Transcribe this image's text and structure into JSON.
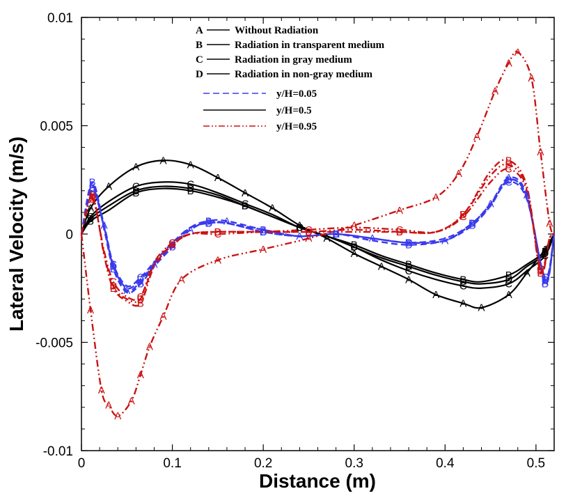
{
  "chart_data": {
    "type": "line",
    "title": "",
    "xlabel": "Distance (m)",
    "ylabel": "Lateral Velocity (m/s)",
    "xlim": [
      0,
      0.52
    ],
    "ylim": [
      -0.01,
      0.01
    ],
    "x_ticks": [
      0,
      0.1,
      0.2,
      0.3,
      0.4,
      0.5
    ],
    "x_tick_labels": [
      "0",
      "0.1",
      "0.2",
      "0.3",
      "0.4",
      "0.5"
    ],
    "y_ticks": [
      -0.01,
      -0.005,
      0,
      0.005,
      0.01
    ],
    "y_tick_labels": [
      "-0.01",
      "-0.005",
      "0",
      "0.005",
      "0.01"
    ],
    "grid": false,
    "legend_cases": [
      {
        "letter": "A",
        "label": "Without Radiation"
      },
      {
        "letter": "B",
        "label": "Radiation in transparent medium"
      },
      {
        "letter": "C",
        "label": "Radiation in gray medium"
      },
      {
        "letter": "D",
        "label": "Radiation in non-gray medium"
      }
    ],
    "legend_styles": [
      {
        "label": "y/H=0.05",
        "color": "#3a3aee",
        "dash": "dashed"
      },
      {
        "label": "y/H=0.5",
        "color": "#000000",
        "dash": "solid"
      },
      {
        "label": "y/H=0.95",
        "color": "#cc1111",
        "dash": "dashdotdot"
      }
    ],
    "series": [
      {
        "name": "A y/H=0.5",
        "case": "A",
        "style": "y/H=0.5",
        "x": [
          0,
          0.01,
          0.03,
          0.06,
          0.09,
          0.12,
          0.15,
          0.18,
          0.21,
          0.24,
          0.27,
          0.3,
          0.33,
          0.36,
          0.39,
          0.42,
          0.44,
          0.47,
          0.49,
          0.51,
          0.52
        ],
        "y": [
          0,
          0.0012,
          0.0022,
          0.0031,
          0.0034,
          0.0032,
          0.0026,
          0.0019,
          0.0012,
          0.0004,
          -0.0002,
          -0.0009,
          -0.0015,
          -0.0021,
          -0.0028,
          -0.0032,
          -0.0034,
          -0.0028,
          -0.0018,
          -0.0007,
          0
        ]
      },
      {
        "name": "B y/H=0.5",
        "case": "B",
        "style": "y/H=0.5",
        "x": [
          0,
          0.01,
          0.03,
          0.06,
          0.09,
          0.12,
          0.15,
          0.18,
          0.21,
          0.24,
          0.27,
          0.3,
          0.33,
          0.36,
          0.39,
          0.42,
          0.44,
          0.47,
          0.49,
          0.51,
          0.52
        ],
        "y": [
          0,
          0.0006,
          0.0011,
          0.0019,
          0.0021,
          0.002,
          0.0017,
          0.0013,
          0.0008,
          0.0003,
          -0.0001,
          -0.0005,
          -0.001,
          -0.0014,
          -0.0018,
          -0.0021,
          -0.0022,
          -0.0019,
          -0.0014,
          -0.0008,
          0
        ]
      },
      {
        "name": "C y/H=0.5",
        "case": "C",
        "style": "y/H=0.5",
        "x": [
          0,
          0.01,
          0.03,
          0.06,
          0.09,
          0.12,
          0.15,
          0.18,
          0.21,
          0.24,
          0.27,
          0.3,
          0.33,
          0.36,
          0.39,
          0.42,
          0.44,
          0.47,
          0.49,
          0.51,
          0.52
        ],
        "y": [
          0,
          0.0008,
          0.0015,
          0.0022,
          0.0024,
          0.0023,
          0.0019,
          0.0014,
          0.0009,
          0.0003,
          -0.0001,
          -0.0006,
          -0.0012,
          -0.0017,
          -0.0021,
          -0.0024,
          -0.0025,
          -0.0023,
          -0.0017,
          -0.001,
          0
        ]
      },
      {
        "name": "D y/H=0.5",
        "case": "D",
        "style": "y/H=0.5",
        "x": [
          0,
          0.01,
          0.03,
          0.06,
          0.09,
          0.12,
          0.15,
          0.18,
          0.21,
          0.24,
          0.27,
          0.3,
          0.33,
          0.36,
          0.39,
          0.42,
          0.44,
          0.47,
          0.49,
          0.51,
          0.52
        ],
        "y": [
          0,
          0.0007,
          0.0013,
          0.002,
          0.0022,
          0.0021,
          0.0018,
          0.0013,
          0.0008,
          0.0003,
          -0.0001,
          -0.0006,
          -0.0011,
          -0.0015,
          -0.0019,
          -0.0022,
          -0.0023,
          -0.0021,
          -0.0015,
          -0.0009,
          0
        ]
      },
      {
        "name": "A y/H=0.05",
        "case": "A",
        "style": "y/H=0.05",
        "x": [
          0,
          0.012,
          0.025,
          0.035,
          0.05,
          0.065,
          0.08,
          0.1,
          0.12,
          0.14,
          0.16,
          0.2,
          0.24,
          0.28,
          0.32,
          0.36,
          0.4,
          0.43,
          0.45,
          0.47,
          0.49,
          0.51,
          0.52
        ],
        "y": [
          0,
          0.0022,
          0.0004,
          -0.0014,
          -0.0026,
          -0.0022,
          -0.0014,
          -0.0005,
          0.0002,
          0.0006,
          0.0006,
          0.0002,
          -0.0001,
          0.0,
          -0.0002,
          -0.0004,
          -0.0003,
          0.0005,
          0.0014,
          0.0026,
          0.0018,
          -0.0022,
          0
        ]
      },
      {
        "name": "B y/H=0.05",
        "case": "B",
        "style": "y/H=0.05",
        "x": [
          0,
          0.012,
          0.025,
          0.035,
          0.05,
          0.065,
          0.08,
          0.1,
          0.12,
          0.14,
          0.16,
          0.2,
          0.24,
          0.28,
          0.32,
          0.36,
          0.4,
          0.43,
          0.45,
          0.47,
          0.49,
          0.51,
          0.52
        ],
        "y": [
          0,
          0.0024,
          0.0002,
          -0.0016,
          -0.0027,
          -0.0023,
          -0.0015,
          -0.0006,
          0.0003,
          0.0006,
          0.0005,
          0.0002,
          -0.0001,
          0.0,
          -0.0003,
          -0.0005,
          -0.0003,
          0.0004,
          0.0013,
          0.0025,
          0.0017,
          -0.0023,
          0
        ]
      },
      {
        "name": "C y/H=0.05",
        "case": "C",
        "style": "y/H=0.05",
        "x": [
          0,
          0.012,
          0.025,
          0.035,
          0.05,
          0.065,
          0.08,
          0.1,
          0.12,
          0.14,
          0.16,
          0.2,
          0.24,
          0.28,
          0.32,
          0.36,
          0.4,
          0.43,
          0.45,
          0.47,
          0.49,
          0.51,
          0.52
        ],
        "y": [
          0,
          0.002,
          0.0003,
          -0.0014,
          -0.0024,
          -0.002,
          -0.0013,
          -0.0004,
          0.0003,
          0.0005,
          0.0005,
          0.0001,
          -0.0001,
          0.0,
          -0.0002,
          -0.0004,
          -0.0002,
          0.0005,
          0.0014,
          0.0024,
          0.0016,
          -0.002,
          0
        ]
      },
      {
        "name": "D y/H=0.05",
        "case": "D",
        "style": "y/H=0.05",
        "x": [
          0,
          0.012,
          0.025,
          0.035,
          0.05,
          0.065,
          0.08,
          0.1,
          0.12,
          0.14,
          0.16,
          0.2,
          0.24,
          0.28,
          0.32,
          0.36,
          0.4,
          0.43,
          0.45,
          0.47,
          0.49,
          0.51,
          0.52
        ],
        "y": [
          0,
          0.0021,
          0.0003,
          -0.0015,
          -0.0025,
          -0.0021,
          -0.0014,
          -0.0005,
          0.0003,
          0.0005,
          0.0005,
          0.0001,
          -0.0001,
          0.0,
          -0.0002,
          -0.0004,
          -0.0003,
          0.0005,
          0.0013,
          0.0025,
          0.0017,
          -0.0021,
          0
        ]
      },
      {
        "name": "A y/H=0.95",
        "case": "A",
        "style": "y/H=0.95",
        "x": [
          0,
          0.01,
          0.022,
          0.03,
          0.04,
          0.055,
          0.065,
          0.075,
          0.09,
          0.11,
          0.15,
          0.2,
          0.25,
          0.3,
          0.35,
          0.39,
          0.415,
          0.435,
          0.455,
          0.47,
          0.48,
          0.495,
          0.505,
          0.515,
          0.52
        ],
        "y": [
          0,
          -0.0035,
          -0.0072,
          -0.0079,
          -0.0084,
          -0.0077,
          -0.0065,
          -0.0052,
          -0.0038,
          -0.0021,
          -0.0012,
          -0.0007,
          -0.0002,
          0.0004,
          0.0011,
          0.0017,
          0.0028,
          0.0045,
          0.0066,
          0.0079,
          0.0084,
          0.0072,
          0.0038,
          0.0005,
          0
        ]
      },
      {
        "name": "B y/H=0.95",
        "case": "B",
        "style": "y/H=0.95",
        "x": [
          0,
          0.012,
          0.025,
          0.035,
          0.05,
          0.065,
          0.08,
          0.1,
          0.12,
          0.15,
          0.2,
          0.25,
          0.3,
          0.35,
          0.39,
          0.42,
          0.45,
          0.47,
          0.49,
          0.505,
          0.515,
          0.52
        ],
        "y": [
          0,
          0.0018,
          -0.001,
          -0.0025,
          -0.0031,
          -0.0032,
          -0.0015,
          -0.0005,
          0.0,
          0.0001,
          0.0001,
          0.0001,
          0.0001,
          0.0001,
          0.0001,
          0.0009,
          0.0029,
          0.0034,
          0.0022,
          -0.0018,
          -0.0002,
          0
        ]
      },
      {
        "name": "C y/H=0.95",
        "case": "C",
        "style": "y/H=0.95",
        "x": [
          0,
          0.012,
          0.025,
          0.035,
          0.05,
          0.065,
          0.08,
          0.1,
          0.12,
          0.15,
          0.2,
          0.25,
          0.3,
          0.35,
          0.39,
          0.42,
          0.45,
          0.47,
          0.49,
          0.505,
          0.515,
          0.52
        ],
        "y": [
          0,
          0.0016,
          -0.0008,
          -0.0022,
          -0.0029,
          -0.0029,
          -0.0013,
          -0.0004,
          0.0,
          0.0,
          0.0001,
          0.0002,
          0.0003,
          0.0002,
          0.0001,
          0.0008,
          0.0024,
          0.003,
          0.002,
          -0.0016,
          -0.0002,
          0
        ]
      },
      {
        "name": "D y/H=0.95",
        "case": "D",
        "style": "y/H=0.95",
        "x": [
          0,
          0.012,
          0.025,
          0.035,
          0.05,
          0.065,
          0.08,
          0.1,
          0.12,
          0.15,
          0.2,
          0.25,
          0.3,
          0.35,
          0.39,
          0.42,
          0.45,
          0.47,
          0.49,
          0.505,
          0.515,
          0.52
        ],
        "y": [
          0,
          0.0017,
          -0.0009,
          -0.0024,
          -0.003,
          -0.003,
          -0.0014,
          -0.0005,
          0.0,
          0.0001,
          0.0001,
          0.0001,
          0.0002,
          0.0001,
          0.0001,
          0.0009,
          0.0027,
          0.0032,
          0.0021,
          -0.0017,
          -0.0002,
          0
        ]
      }
    ]
  }
}
